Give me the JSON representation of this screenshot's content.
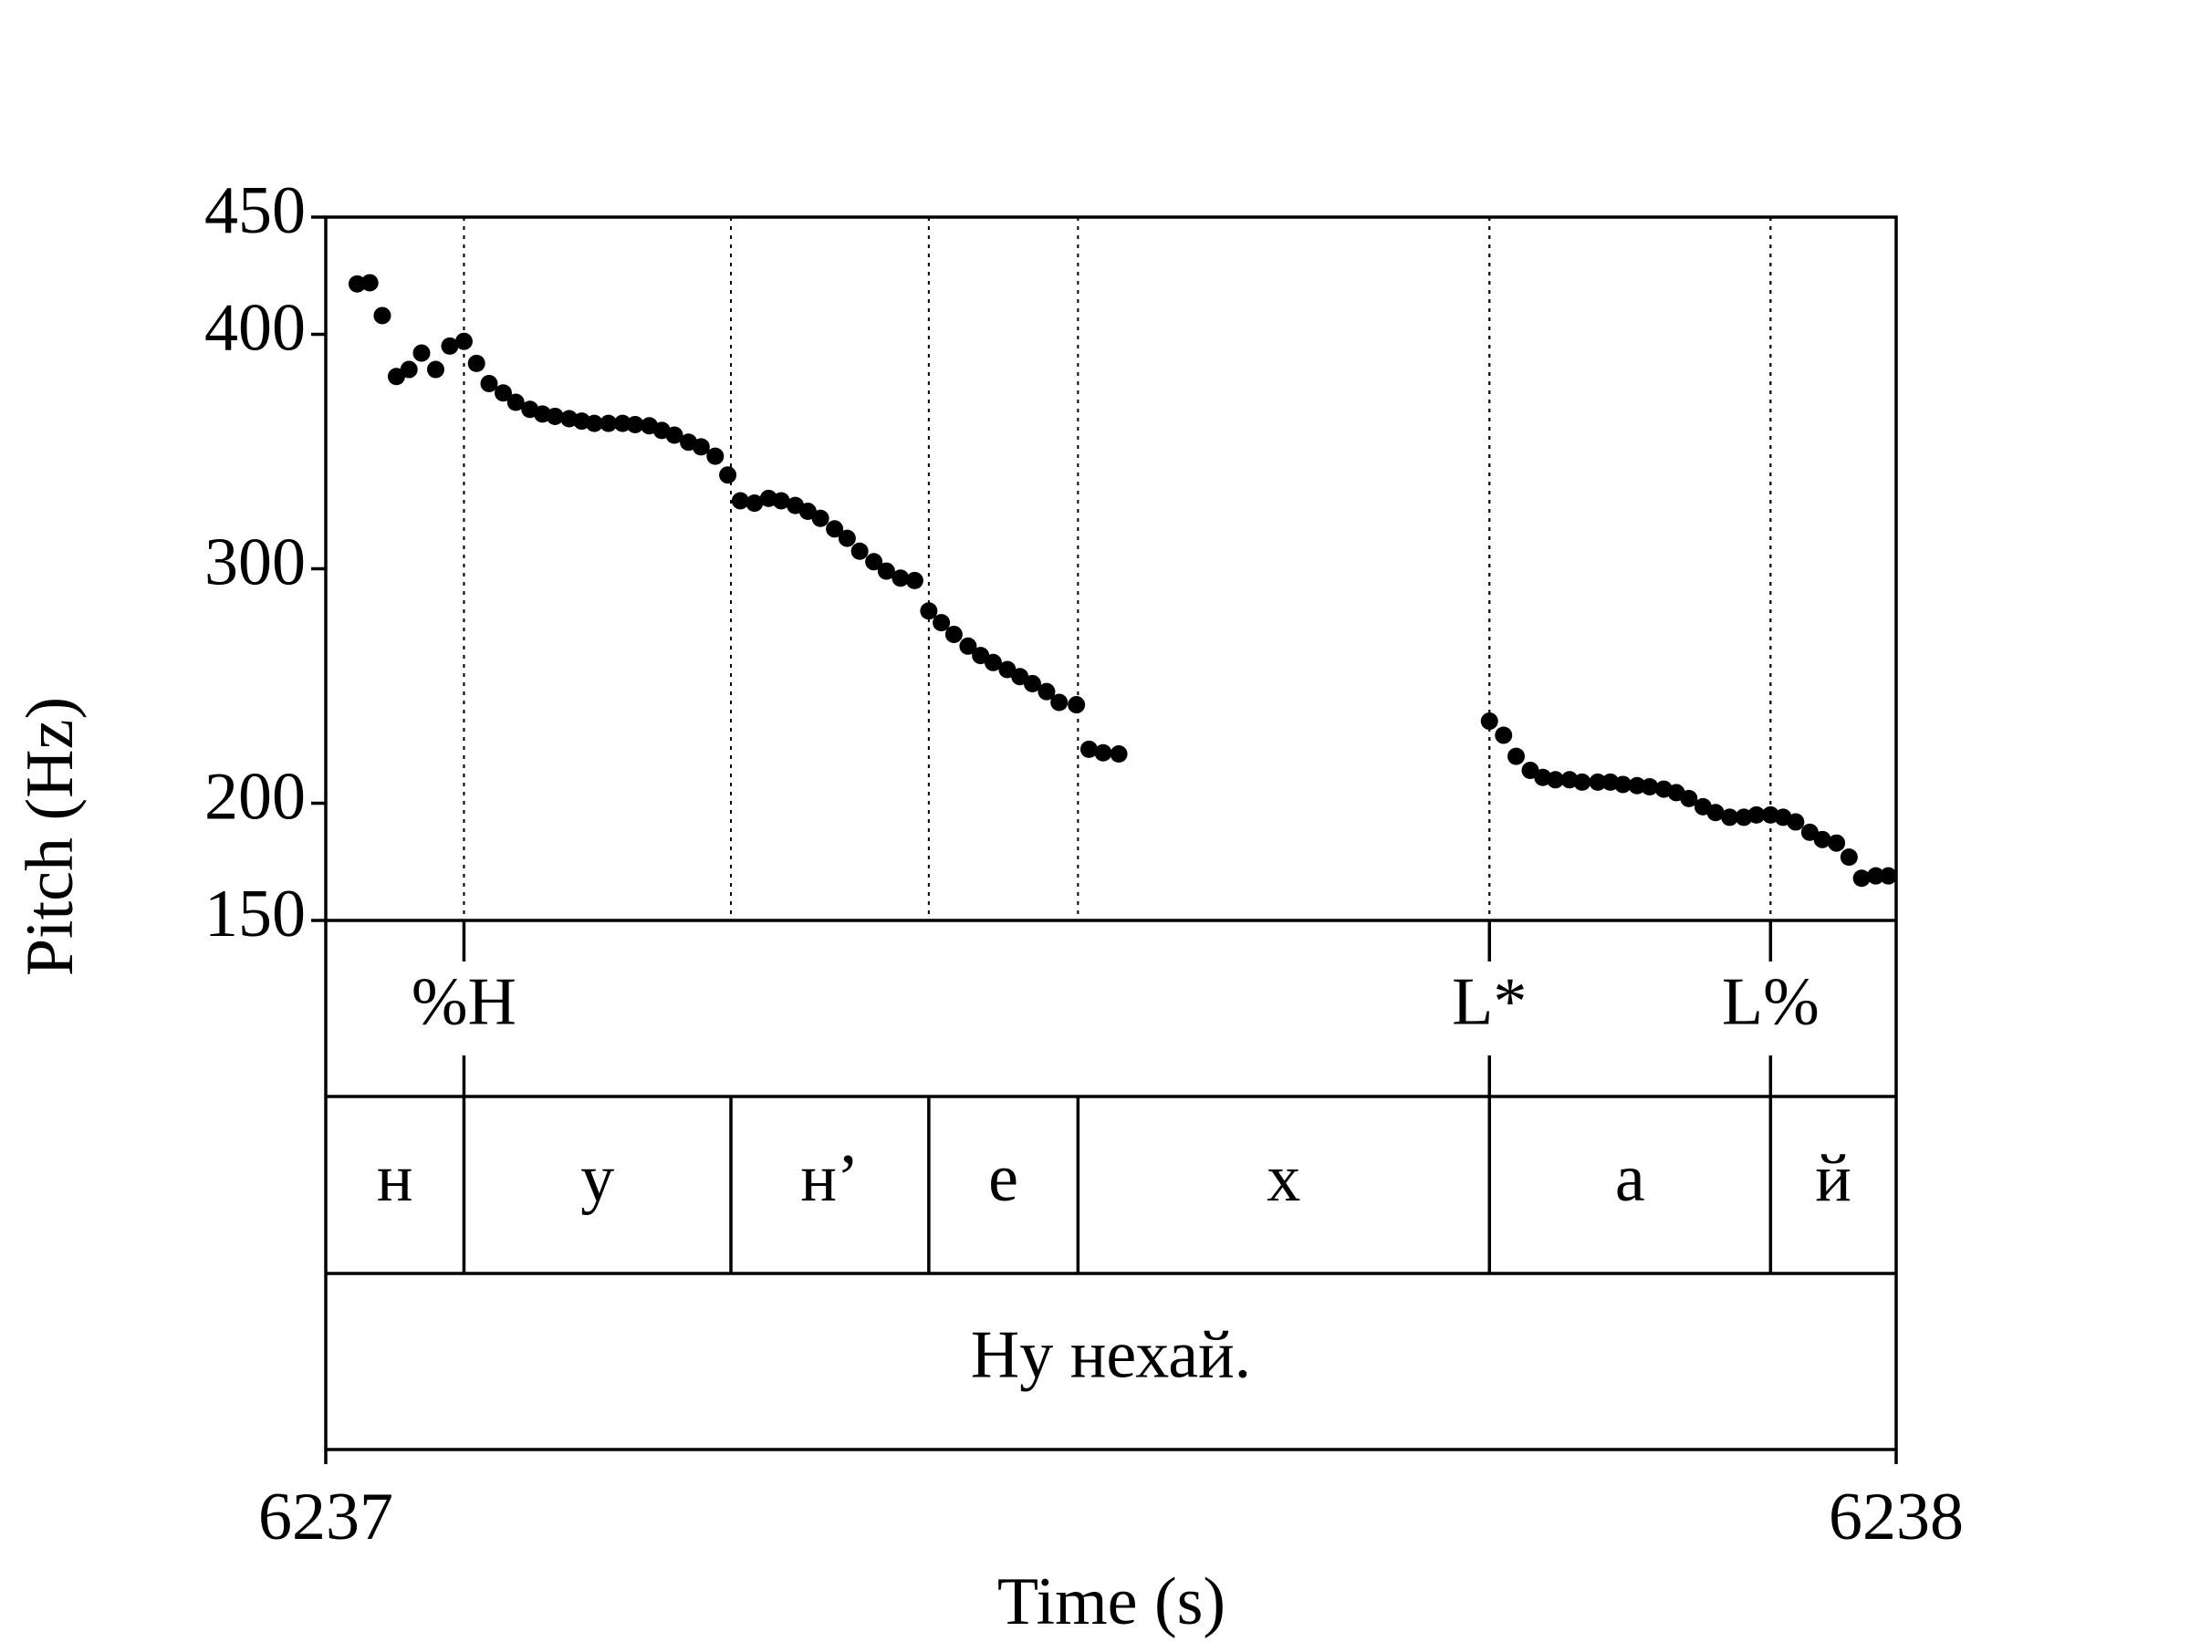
{
  "chart_data": {
    "type": "scatter",
    "xlabel": "Time (s)",
    "ylabel": "Pitch (Hz)",
    "color": "#000000",
    "xlim": [
      6237,
      6238
    ],
    "xticks": [
      6237,
      6238
    ],
    "ylim": [
      150,
      450
    ],
    "yticks": [
      150,
      200,
      300,
      400,
      450
    ],
    "x": [
      6237.02,
      6237.028,
      6237.036,
      6237.045,
      6237.053,
      6237.061,
      6237.07,
      6237.079,
      6237.088,
      6237.096,
      6237.104,
      6237.113,
      6237.121,
      6237.13,
      6237.138,
      6237.146,
      6237.155,
      6237.163,
      6237.171,
      6237.18,
      6237.189,
      6237.197,
      6237.206,
      6237.214,
      6237.222,
      6237.231,
      6237.239,
      6237.248,
      6237.256,
      6237.264,
      6237.273,
      6237.282,
      6237.29,
      6237.299,
      6237.307,
      6237.315,
      6237.324,
      6237.332,
      6237.34,
      6237.349,
      6237.357,
      6237.366,
      6237.375,
      6237.384,
      6237.392,
      6237.4,
      6237.409,
      6237.417,
      6237.425,
      6237.434,
      6237.442,
      6237.45,
      6237.459,
      6237.467,
      6237.478,
      6237.486,
      6237.495,
      6237.505,
      6237.741,
      6237.75,
      6237.758,
      6237.767,
      6237.775,
      6237.783,
      6237.792,
      6237.8,
      6237.81,
      6237.818,
      6237.826,
      6237.835,
      6237.843,
      6237.852,
      6237.86,
      6237.868,
      6237.877,
      6237.885,
      6237.894,
      6237.903,
      6237.911,
      6237.92,
      6237.928,
      6237.936,
      6237.945,
      6237.953,
      6237.962,
      6237.97,
      6237.978,
      6237.987,
      6237.995
    ],
    "values": [
      421.5,
      422,
      408,
      382,
      385,
      392,
      385,
      395,
      397,
      387.6,
      379,
      375,
      371,
      368,
      366,
      365,
      364,
      363,
      362,
      362,
      362,
      361.5,
      361,
      359,
      357,
      354,
      352,
      348,
      340,
      329,
      328,
      330,
      329,
      327,
      324.5,
      321.5,
      317,
      313,
      307.5,
      303,
      299,
      296,
      295,
      282,
      277,
      272,
      267,
      263,
      260,
      257,
      254,
      251,
      247.6,
      243,
      242,
      223,
      221.5,
      221,
      235,
      229,
      220,
      214,
      211,
      210,
      210,
      209,
      209,
      209,
      208,
      207.5,
      207,
      206,
      204.5,
      202,
      198.5,
      196,
      194,
      194,
      195,
      195,
      194,
      192,
      187.6,
      184.5,
      183,
      177,
      168,
      169,
      169
    ],
    "tiers": [
      {
        "times": [
          6237.088,
          6237.741,
          6237.92
        ],
        "labels": [
          "%H",
          "L*",
          "L%"
        ]
      },
      {
        "boundaries": [
          6237.088,
          6237.258,
          6237.384,
          6237.479,
          6237.741,
          6237.92
        ],
        "labels": [
          "н",
          "у",
          "н’",
          "е",
          "х",
          "а",
          "й"
        ]
      },
      {
        "boundaries": [],
        "labels": [
          "Ну нехай."
        ]
      }
    ]
  }
}
